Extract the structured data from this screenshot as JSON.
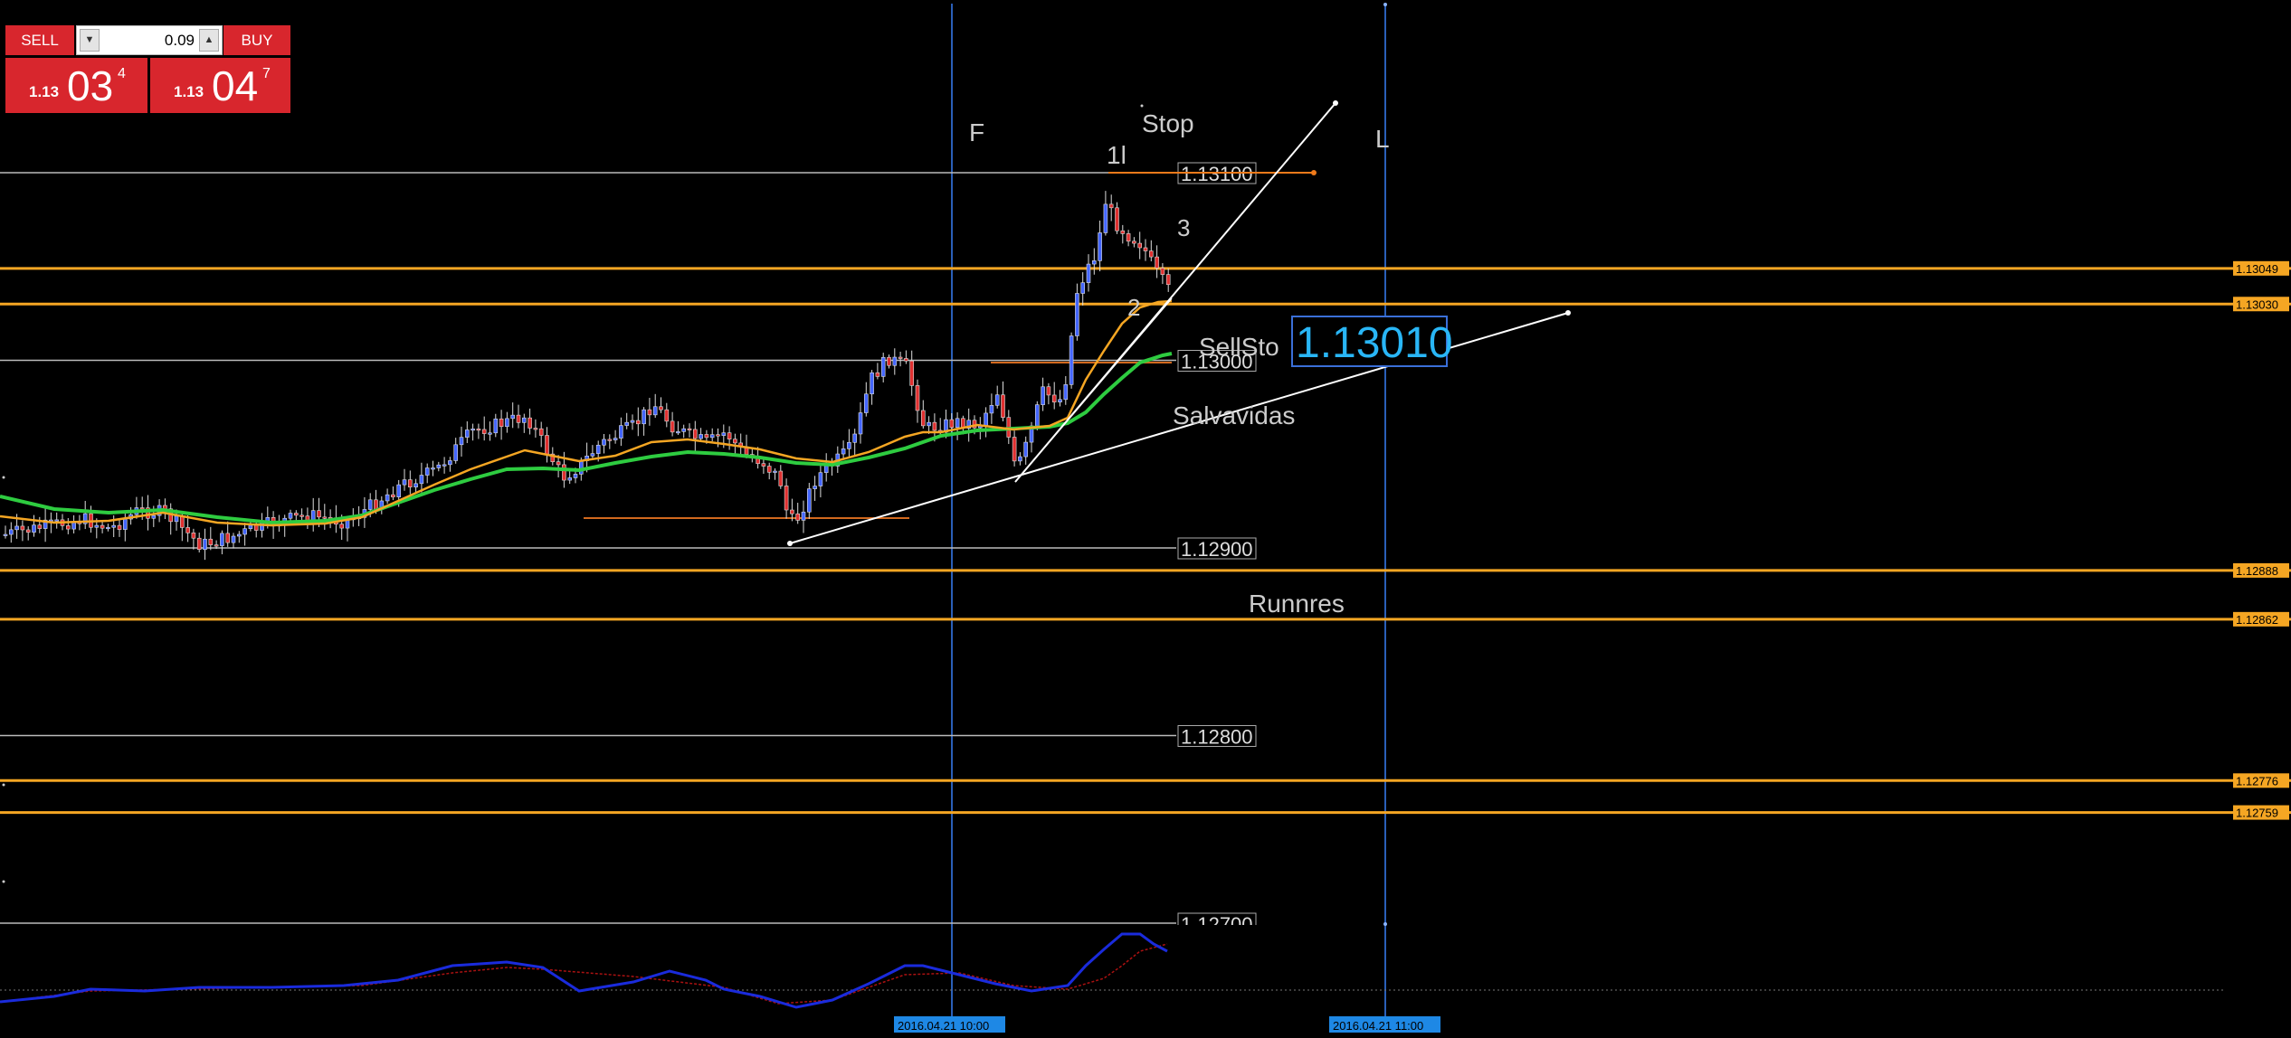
{
  "trade_panel": {
    "sell_label": "SELL",
    "buy_label": "BUY",
    "lot_value": "0.09",
    "sell_price_small": "1.13",
    "sell_price_big": "03",
    "sell_price_sup": "4",
    "buy_price_small": "1.13",
    "buy_price_big": "04",
    "buy_price_sup": "7",
    "color": "#d8262d"
  },
  "chart_data": {
    "type": "candlestick",
    "symbol_decimals": 5,
    "ylim": [
      1.12686,
      1.13211
    ],
    "grid": false,
    "background": "#000000",
    "level_lines": [
      {
        "label": "1.13100",
        "value": 1.131
      },
      {
        "label": "1.13000",
        "value": 1.13
      },
      {
        "label": "1.12900",
        "value": 1.129
      },
      {
        "label": "1.12800",
        "value": 1.128
      },
      {
        "label": "1.12700",
        "value": 1.127
      }
    ],
    "orange_levels": [
      {
        "label": "1.13049",
        "value": 1.13049
      },
      {
        "label": "1.13030",
        "value": 1.1303
      },
      {
        "label": "1.12888",
        "value": 1.12888
      },
      {
        "label": "1.12862",
        "value": 1.12862
      },
      {
        "label": "1.12776",
        "value": 1.12776
      },
      {
        "label": "1.12759",
        "value": 1.12759
      }
    ],
    "vertical_markers": [
      {
        "label": "F",
        "time_label": "2016.04.21 10:00"
      },
      {
        "label": "L",
        "time_label": "2016.04.21 11:00"
      }
    ],
    "annotations": {
      "stop": "Stop",
      "wave_1": "1l",
      "wave_2": "2",
      "wave_3": "3",
      "sell_stop": "SellSto",
      "salvavidas": "Salvavidas",
      "runners": "Runnres"
    },
    "sell_stop_price": "1.13010",
    "colors": {
      "bull": "#4466ff",
      "bear": "#e03030",
      "orange": "#f5a623",
      "ema_fast": "#f5a623",
      "ema_slow": "#2ecc40",
      "vertical": "#2a5fb8",
      "oscillator": "#1a2bdc",
      "oscillator_signal": "#aa1111",
      "label_bg": "#f5a623",
      "time_bg": "#1e88e5",
      "sell_stop_text": "#29b6f6"
    }
  }
}
